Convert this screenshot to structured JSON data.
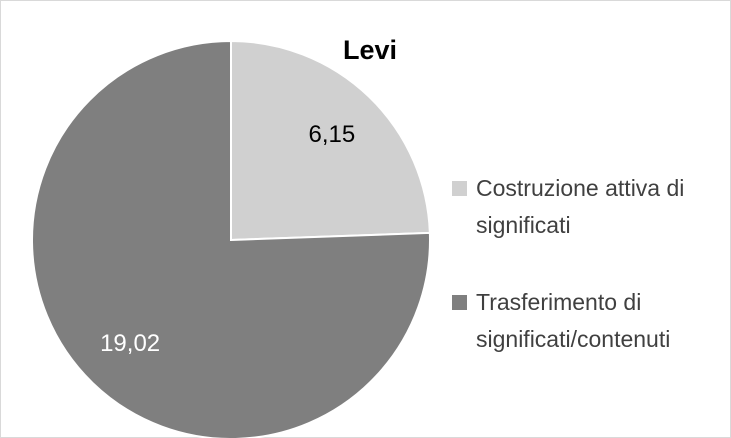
{
  "chart_data": {
    "type": "pie",
    "title": "Levi",
    "categories": [
      "Costruzione attiva di significati",
      "Trasferimento di significati/contenuti"
    ],
    "values": [
      6.15,
      19.02
    ],
    "value_labels": [
      "6,15",
      "19,02"
    ],
    "colors": [
      "#d0d0d0",
      "#7f7f7f"
    ],
    "legend": "right"
  }
}
